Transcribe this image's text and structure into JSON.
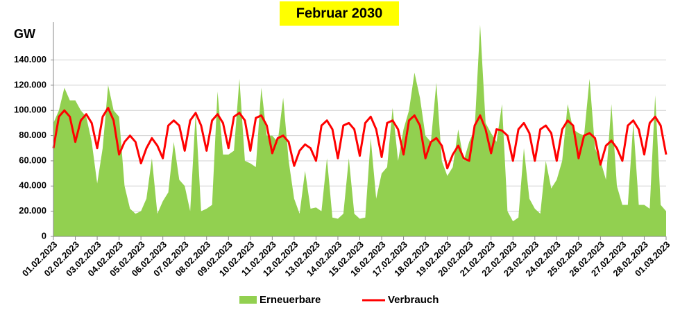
{
  "chart_data": {
    "type": "area-line",
    "title": "Februar 2030",
    "ylabel": "GW",
    "x": [
      0,
      0.25,
      0.5,
      0.75,
      1,
      1.25,
      1.5,
      1.75,
      2,
      2.25,
      2.5,
      2.75,
      3,
      3.25,
      3.5,
      3.75,
      4,
      4.25,
      4.5,
      4.75,
      5,
      5.25,
      5.5,
      5.75,
      6,
      6.25,
      6.5,
      6.75,
      7,
      7.25,
      7.5,
      7.75,
      8,
      8.25,
      8.5,
      8.75,
      9,
      9.25,
      9.5,
      9.75,
      10,
      10.25,
      10.5,
      10.75,
      11,
      11.25,
      11.5,
      11.75,
      12,
      12.25,
      12.5,
      12.75,
      13,
      13.25,
      13.5,
      13.75,
      14,
      14.25,
      14.5,
      14.75,
      15,
      15.25,
      15.5,
      15.75,
      16,
      16.25,
      16.5,
      16.75,
      17,
      17.25,
      17.5,
      17.75,
      18,
      18.25,
      18.5,
      18.75,
      19,
      19.25,
      19.5,
      19.75,
      20,
      20.25,
      20.5,
      20.75,
      21,
      21.25,
      21.5,
      21.75,
      22,
      22.25,
      22.5,
      22.75,
      23,
      23.25,
      23.5,
      23.75,
      24,
      24.25,
      24.5,
      24.75,
      25,
      25.25,
      25.5,
      25.75,
      26,
      26.25,
      26.5,
      26.75,
      27,
      27.25,
      27.5,
      27.75,
      28
    ],
    "series": [
      {
        "name": "Erneuerbare",
        "kind": "area",
        "color": "#92d050",
        "values": [
          90000,
          100000,
          118000,
          108000,
          108000,
          100000,
          95000,
          75000,
          42000,
          70000,
          120000,
          100000,
          95000,
          40000,
          22000,
          18000,
          20000,
          30000,
          62000,
          18000,
          28000,
          35000,
          75000,
          45000,
          40000,
          20000,
          98000,
          20000,
          22000,
          25000,
          115000,
          65000,
          65000,
          68000,
          125000,
          60000,
          58000,
          55000,
          118000,
          80000,
          80000,
          75000,
          110000,
          60000,
          30000,
          18000,
          52000,
          22000,
          23000,
          20000,
          62000,
          15000,
          14000,
          18000,
          62000,
          18000,
          14000,
          15000,
          78000,
          30000,
          50000,
          55000,
          102000,
          60000,
          85000,
          100000,
          130000,
          110000,
          80000,
          75000,
          122000,
          60000,
          48000,
          55000,
          85000,
          60000,
          75000,
          85000,
          168000,
          90000,
          82000,
          75000,
          105000,
          20000,
          12000,
          15000,
          70000,
          30000,
          22000,
          18000,
          60000,
          38000,
          45000,
          60000,
          105000,
          85000,
          82000,
          80000,
          125000,
          70000,
          60000,
          45000,
          105000,
          40000,
          25000,
          25000,
          90000,
          25000,
          25000,
          22000,
          112000,
          25000,
          20000
        ]
      },
      {
        "name": "Verbrauch",
        "kind": "line",
        "color": "#ff0000",
        "values": [
          70000,
          95000,
          100000,
          95000,
          75000,
          92000,
          97000,
          90000,
          70000,
          95000,
          102000,
          92000,
          65000,
          75000,
          80000,
          75000,
          58000,
          70000,
          78000,
          72000,
          62000,
          88000,
          92000,
          88000,
          68000,
          92000,
          98000,
          88000,
          68000,
          92000,
          97000,
          90000,
          70000,
          95000,
          98000,
          92000,
          68000,
          94000,
          96000,
          88000,
          66000,
          78000,
          80000,
          75000,
          56000,
          68000,
          73000,
          70000,
          60000,
          88000,
          92000,
          85000,
          62000,
          88000,
          90000,
          85000,
          64000,
          90000,
          95000,
          85000,
          63000,
          90000,
          92000,
          85000,
          65000,
          92000,
          96000,
          88000,
          62000,
          75000,
          78000,
          72000,
          54000,
          65000,
          72000,
          62000,
          60000,
          88000,
          96000,
          85000,
          66000,
          85000,
          84000,
          80000,
          60000,
          85000,
          90000,
          82000,
          60000,
          85000,
          88000,
          82000,
          60000,
          85000,
          92000,
          88000,
          62000,
          80000,
          82000,
          78000,
          57000,
          72000,
          76000,
          70000,
          60000,
          88000,
          92000,
          85000,
          65000,
          90000,
          95000,
          88000,
          65000
        ]
      }
    ],
    "xlim": [
      0,
      28
    ],
    "xticks": [
      {
        "value": 0,
        "label": "01.02.2023"
      },
      {
        "value": 1,
        "label": "02.02.2023"
      },
      {
        "value": 2,
        "label": "03.02.2023"
      },
      {
        "value": 3,
        "label": "04.02.2023"
      },
      {
        "value": 4,
        "label": "05.02.2023"
      },
      {
        "value": 5,
        "label": "06.02.2023"
      },
      {
        "value": 6,
        "label": "07.02.2023"
      },
      {
        "value": 7,
        "label": "08.02.2023"
      },
      {
        "value": 8,
        "label": "09.02.2023"
      },
      {
        "value": 9,
        "label": "10.02.2023"
      },
      {
        "value": 10,
        "label": "11.02.2023"
      },
      {
        "value": 11,
        "label": "12.02.2023"
      },
      {
        "value": 12,
        "label": "13.02.2023"
      },
      {
        "value": 13,
        "label": "14.02.2023"
      },
      {
        "value": 14,
        "label": "15.02.2023"
      },
      {
        "value": 15,
        "label": "16.02.2023"
      },
      {
        "value": 16,
        "label": "17.02.2023"
      },
      {
        "value": 17,
        "label": "18.02.2023"
      },
      {
        "value": 18,
        "label": "19.02.2023"
      },
      {
        "value": 19,
        "label": "20.02.2023"
      },
      {
        "value": 20,
        "label": "21.02.2023"
      },
      {
        "value": 21,
        "label": "22.02.2023"
      },
      {
        "value": 22,
        "label": "23.02.2023"
      },
      {
        "value": 23,
        "label": "24.02.2023"
      },
      {
        "value": 24,
        "label": "25.02.2023"
      },
      {
        "value": 25,
        "label": "26.02.2023"
      },
      {
        "value": 26,
        "label": "27.02.2023"
      },
      {
        "value": 27,
        "label": "28.02.2023"
      },
      {
        "value": 28,
        "label": "01.03.2023"
      }
    ],
    "ylim": [
      0,
      170000
    ],
    "yticks": [
      0,
      {
        "value": 20000,
        "label": "20.000"
      },
      {
        "value": 40000,
        "label": "40.000"
      },
      {
        "value": 60000,
        "label": "60.000"
      },
      {
        "value": 80000,
        "label": "80.000"
      },
      {
        "value": 100000,
        "label": "100.000"
      },
      {
        "value": 120000,
        "label": "120.000"
      },
      {
        "value": 140000,
        "label": "140.000"
      }
    ],
    "grid": true,
    "legend": "bottom"
  }
}
